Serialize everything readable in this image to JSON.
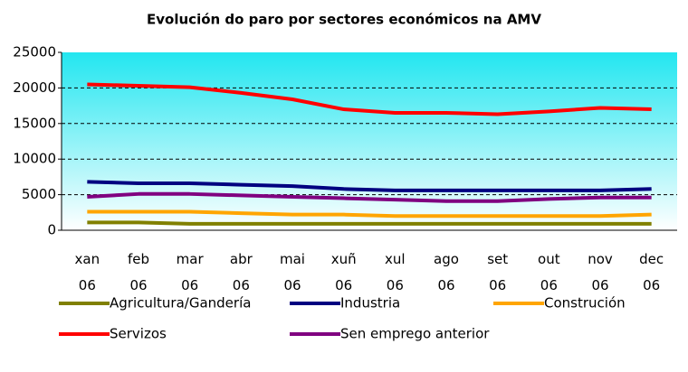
{
  "chart_data": {
    "type": "line",
    "title": "Evolución do paro por sectores económicos na AMV",
    "categories": [
      "xan 06",
      "feb 06",
      "mar 06",
      "abr 06",
      "mai 06",
      "xuñ 06",
      "xul 06",
      "ago 06",
      "set 06",
      "out 06",
      "nov 06",
      "dec 06"
    ],
    "series": [
      {
        "name": "Agricultura/Gandería",
        "color": "#808000",
        "values": [
          1100,
          1100,
          900,
          900,
          900,
          900,
          900,
          900,
          900,
          900,
          900,
          900
        ]
      },
      {
        "name": "Industria",
        "color": "#000080",
        "values": [
          6800,
          6600,
          6600,
          6400,
          6200,
          5800,
          5600,
          5600,
          5600,
          5600,
          5600,
          5800
        ]
      },
      {
        "name": "Construción",
        "color": "#ffa500",
        "values": [
          2600,
          2600,
          2600,
          2400,
          2200,
          2200,
          2000,
          2000,
          2000,
          2000,
          2000,
          2200
        ]
      },
      {
        "name": "Servizos",
        "color": "#ff0000",
        "values": [
          20500,
          20300,
          20100,
          19300,
          18400,
          17000,
          16500,
          16500,
          16300,
          16700,
          17200,
          17000
        ]
      },
      {
        "name": "Sen emprego anterior",
        "color": "#800080",
        "values": [
          4700,
          5100,
          5100,
          4900,
          4700,
          4500,
          4300,
          4100,
          4100,
          4400,
          4600,
          4600
        ]
      }
    ],
    "ylim": [
      0,
      25000
    ],
    "yticks": [
      0,
      5000,
      10000,
      15000,
      20000,
      25000
    ],
    "grid": true,
    "legend": "bottom"
  }
}
